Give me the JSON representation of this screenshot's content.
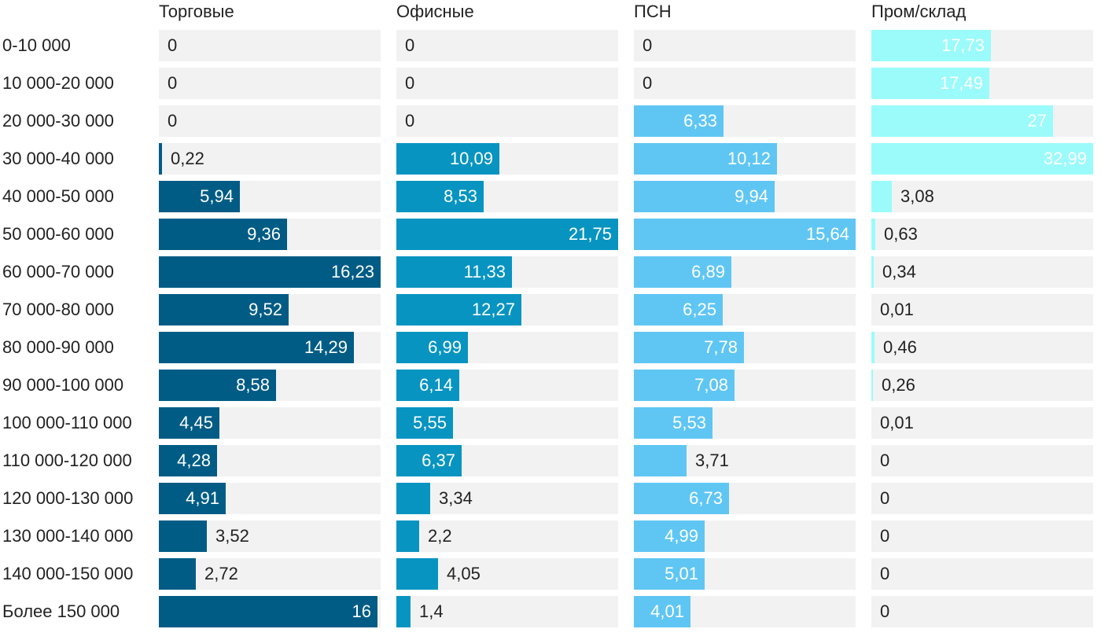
{
  "chart_data": {
    "type": "bar",
    "orientation": "horizontal",
    "layout": "small-multiples",
    "categories": [
      "0-10 000",
      "10 000-20 000",
      "20 000-30 000",
      "30 000-40 000",
      "40 000-50 000",
      "50 000-60 000",
      "60 000-70 000",
      "70 000-80 000",
      "80 000-90 000",
      "90 000-100 000",
      "100 000-110 000",
      "110 000-120 000",
      "120 000-130 000",
      "130 000-140 000",
      "140 000-150 000",
      "Более 150 000"
    ],
    "series": [
      {
        "name": "Торговые",
        "color": "#005c85",
        "values": [
          0,
          0,
          0,
          0.22,
          5.94,
          9.36,
          16.23,
          9.52,
          14.29,
          8.58,
          4.45,
          4.28,
          4.91,
          3.52,
          2.72,
          16
        ],
        "labels": [
          "0",
          "0",
          "0",
          "0,22",
          "5,94",
          "9,36",
          "16,23",
          "9,52",
          "14,29",
          "8,58",
          "4,45",
          "4,28",
          "4,91",
          "3,52",
          "2,72",
          "16"
        ],
        "xlim": [
          0,
          16.23
        ]
      },
      {
        "name": "Офисные",
        "color": "#0894c1",
        "values": [
          0,
          0,
          0,
          10.09,
          8.53,
          21.75,
          11.33,
          12.27,
          6.99,
          6.14,
          5.55,
          6.37,
          3.34,
          2.2,
          4.05,
          1.4
        ],
        "labels": [
          "0",
          "0",
          "0",
          "10,09",
          "8,53",
          "21,75",
          "11,33",
          "12,27",
          "6,99",
          "6,14",
          "5,55",
          "6,37",
          "3,34",
          "2,2",
          "4,05",
          "1,4"
        ],
        "xlim": [
          0,
          21.75
        ]
      },
      {
        "name": "ПСН",
        "color": "#5fc6f4",
        "values": [
          0,
          0,
          6.33,
          10.12,
          9.94,
          15.64,
          6.89,
          6.25,
          7.78,
          7.08,
          5.53,
          3.71,
          6.73,
          4.99,
          5.01,
          4.01
        ],
        "labels": [
          "0",
          "0",
          "6,33",
          "10,12",
          "9,94",
          "15,64",
          "6,89",
          "6,25",
          "7,78",
          "7,08",
          "5,53",
          "3,71",
          "6,73",
          "4,99",
          "5,01",
          "4,01"
        ],
        "xlim": [
          0,
          15.64
        ]
      },
      {
        "name": "Пром/склад",
        "color": "#9bfbfb",
        "values": [
          17.73,
          17.49,
          27,
          32.99,
          3.08,
          0.63,
          0.34,
          0.01,
          0.46,
          0.26,
          0.01,
          0,
          0,
          0,
          0,
          0
        ],
        "labels": [
          "17,73",
          "17,49",
          "27",
          "32,99",
          "3,08",
          "0,63",
          "0,34",
          "0,01",
          "0,46",
          "0,26",
          "0,01",
          "0",
          "0",
          "0",
          "0",
          "0"
        ],
        "xlim": [
          0,
          32.99
        ]
      }
    ],
    "grid": false,
    "legend": "column-headers"
  }
}
